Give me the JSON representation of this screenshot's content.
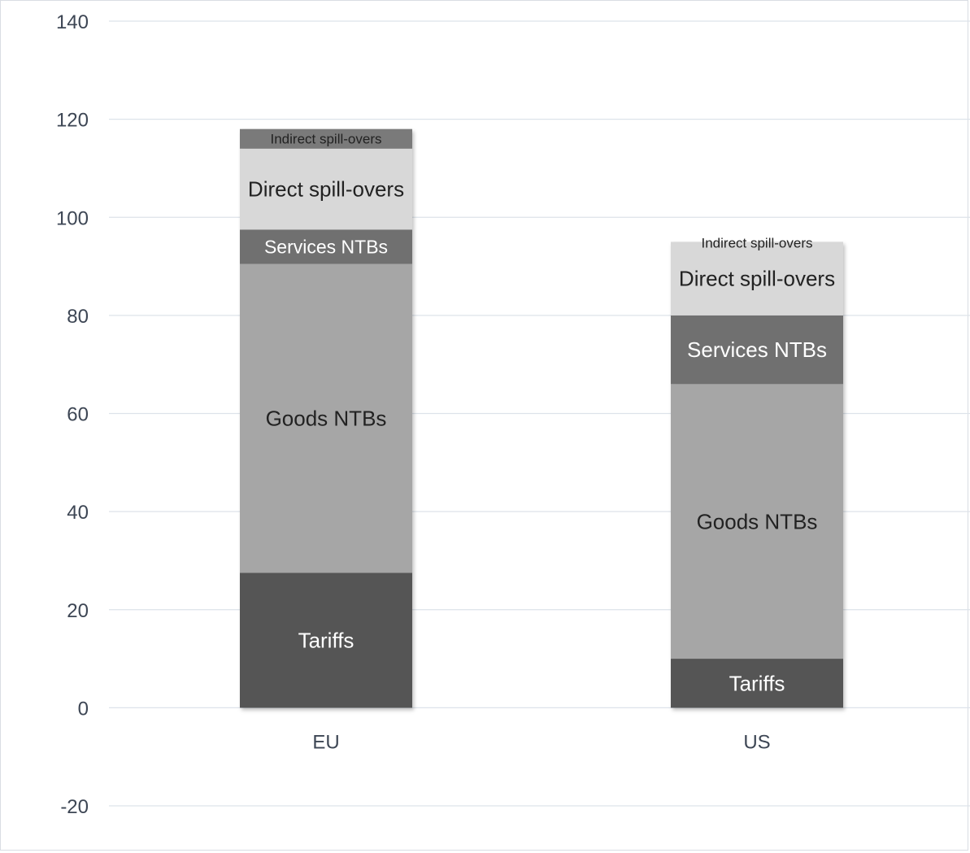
{
  "chart_data": {
    "type": "bar",
    "stacked": true,
    "title": "",
    "xlabel": "",
    "ylabel": "",
    "ylim": [
      -20,
      140
    ],
    "yticks": [
      -20,
      0,
      20,
      40,
      60,
      80,
      100,
      120,
      140
    ],
    "grid": true,
    "legend": "none",
    "categories": [
      "EU",
      "US"
    ],
    "series": [
      {
        "name": "Tariffs",
        "values": [
          27.5,
          10
        ],
        "color": "#555555",
        "label_color": "#ffffff"
      },
      {
        "name": "Goods NTBs",
        "values": [
          63,
          56
        ],
        "color": "#a6a6a6",
        "label_color": "#222222"
      },
      {
        "name": "Services NTBs",
        "values": [
          7,
          14
        ],
        "color": "#6f6f6f",
        "label_color": "#ffffff"
      },
      {
        "name": "Direct spill-overs",
        "values": [
          16.5,
          15
        ],
        "color": "#d8d8d8",
        "label_color": "#222222"
      },
      {
        "name": "Indirect spill-overs",
        "values": [
          4,
          0
        ],
        "color": "#7a7a7a",
        "label_color": "#222222"
      }
    ],
    "segment_labels": [
      [
        "Tariffs",
        "Goods NTBs",
        "Services NTBs",
        "Direct spill-overs",
        "Indirect spill-overs"
      ],
      [
        "Tariffs",
        "Goods NTBs",
        "Services NTBs",
        "Direct spill-overs",
        "Indirect spill-overs"
      ]
    ]
  }
}
